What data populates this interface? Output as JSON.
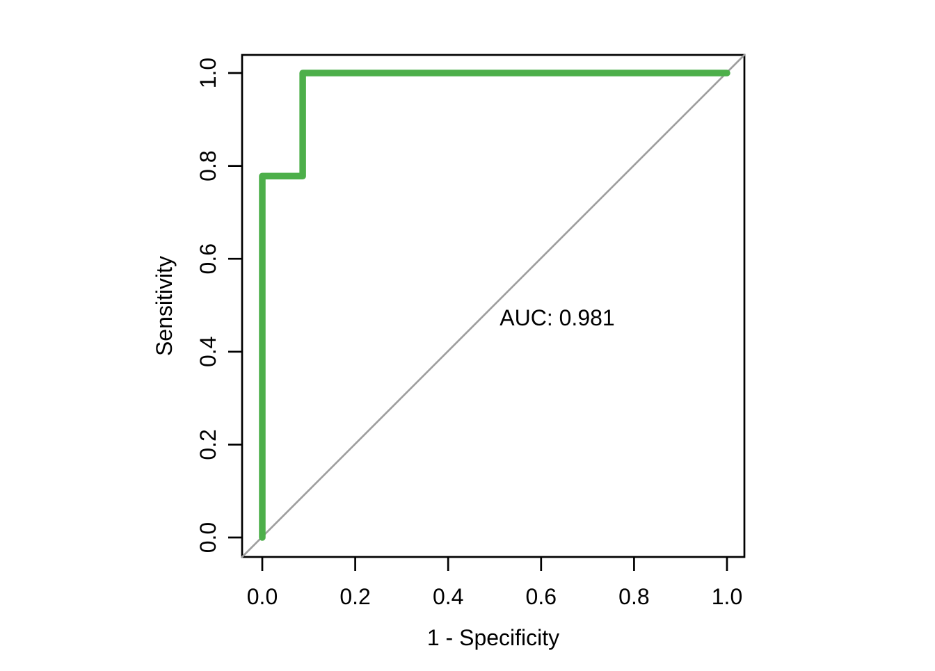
{
  "chart_data": {
    "type": "line",
    "title": "",
    "xlabel": "1 - Specificity",
    "ylabel": "Sensitivity",
    "xlim": [
      0,
      1
    ],
    "ylim": [
      0,
      1
    ],
    "x_ticks": [
      "0.0",
      "0.2",
      "0.4",
      "0.6",
      "0.8",
      "1.0"
    ],
    "y_ticks": [
      "0.0",
      "0.2",
      "0.4",
      "0.6",
      "0.8",
      "1.0"
    ],
    "grid": false,
    "legend": "none",
    "background": "#ffffff",
    "axis_color": "#000000",
    "series": [
      {
        "name": "roc-curve",
        "color": "#4daf4a",
        "line_width": 9.5,
        "style": "steps",
        "points": [
          [
            0.0,
            0.0
          ],
          [
            0.0,
            0.778
          ],
          [
            0.087,
            0.778
          ],
          [
            0.087,
            1.0
          ],
          [
            1.0,
            1.0
          ]
        ]
      },
      {
        "name": "chance-diagonal",
        "color": "#9e9e9e",
        "line_width": 2.7,
        "style": "abline",
        "points": [
          [
            0.0,
            0.0
          ],
          [
            1.0,
            1.0
          ]
        ]
      }
    ],
    "auc_label": "AUC: 0.981",
    "auc_value": 0.981,
    "annotations": [
      {
        "text": "AUC: 0.981",
        "color": "#4daf4a",
        "x": 0.635,
        "y": 0.457
      }
    ]
  }
}
